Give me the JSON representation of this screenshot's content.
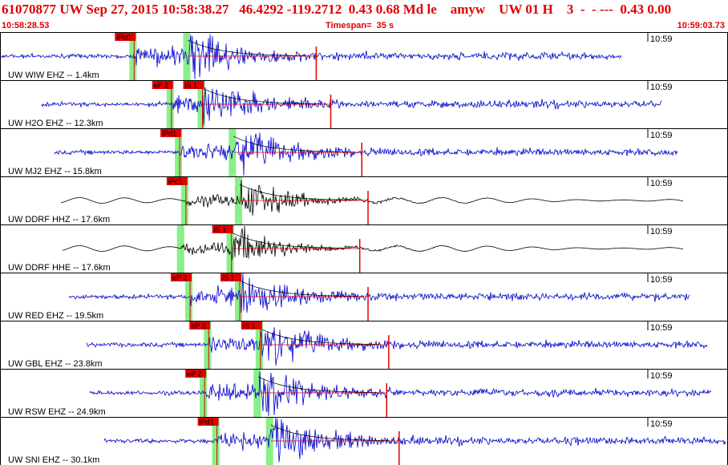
{
  "header": {
    "title": "61070877 UW Sep 27, 2015 10:58:38.27   46.4292 -119.2712  0.43 0.68 Md le    amyw    UW 01 H    3  -  - ---  0.43 0.00",
    "start_time": "10:58:28.53",
    "timespan": "Timespan=  35 s",
    "end_time": "10:59:03.73"
  },
  "tick_label": "10:59",
  "colors": {
    "header": "#e00000",
    "blue": "#0000cc",
    "black": "#000000",
    "pick": "#e00000",
    "window": "#88f088"
  },
  "traces": [
    {
      "label": "UW WIW EHZ -- 1.4km",
      "color": "blue",
      "picks": [
        {
          "text": "iPc0",
          "t": 6.4
        }
      ],
      "s_pick": null
    },
    {
      "label": "UW H2O EHZ -- 12.3km",
      "color": "blue",
      "picks": [
        {
          "text": "eP 2",
          "t": 8.2
        }
      ],
      "s_pick": {
        "text": "iS 1",
        "t": 9.7
      }
    },
    {
      "label": "UW MJ2 EHZ -- 15.8km",
      "color": "blue",
      "picks": [
        {
          "text": "iPd1",
          "t": 8.6
        }
      ],
      "s_pick": null
    },
    {
      "label": "UW DDRF HHZ -- 17.6km",
      "color": "black",
      "picks": [
        {
          "text": "iPc1",
          "t": 8.9
        }
      ],
      "s_pick": null
    },
    {
      "label": "UW DDRF HHE -- 17.6km",
      "color": "black",
      "picks": [],
      "s_pick": {
        "text": "iS 1",
        "t": 11.1
      }
    },
    {
      "label": "UW RED EHZ -- 19.5km",
      "color": "blue",
      "picks": [
        {
          "text": "eP 2",
          "t": 9.1
        }
      ],
      "s_pick": {
        "text": "iS 1",
        "t": 11.5
      }
    },
    {
      "label": "UW GBL EHZ -- 23.8km",
      "color": "blue",
      "picks": [
        {
          "text": "eP 2",
          "t": 10.0
        }
      ],
      "s_pick": {
        "text": "iS 1",
        "t": 12.5
      }
    },
    {
      "label": "UW RSW EHZ -- 24.9km",
      "color": "blue",
      "picks": [
        {
          "text": "eP 2",
          "t": 9.8
        }
      ],
      "s_pick": null
    },
    {
      "label": "UW SNI EHZ -- 30.1km",
      "color": "blue",
      "picks": [
        {
          "text": "iPd1",
          "t": 10.4
        }
      ],
      "s_pick": null
    }
  ]
}
